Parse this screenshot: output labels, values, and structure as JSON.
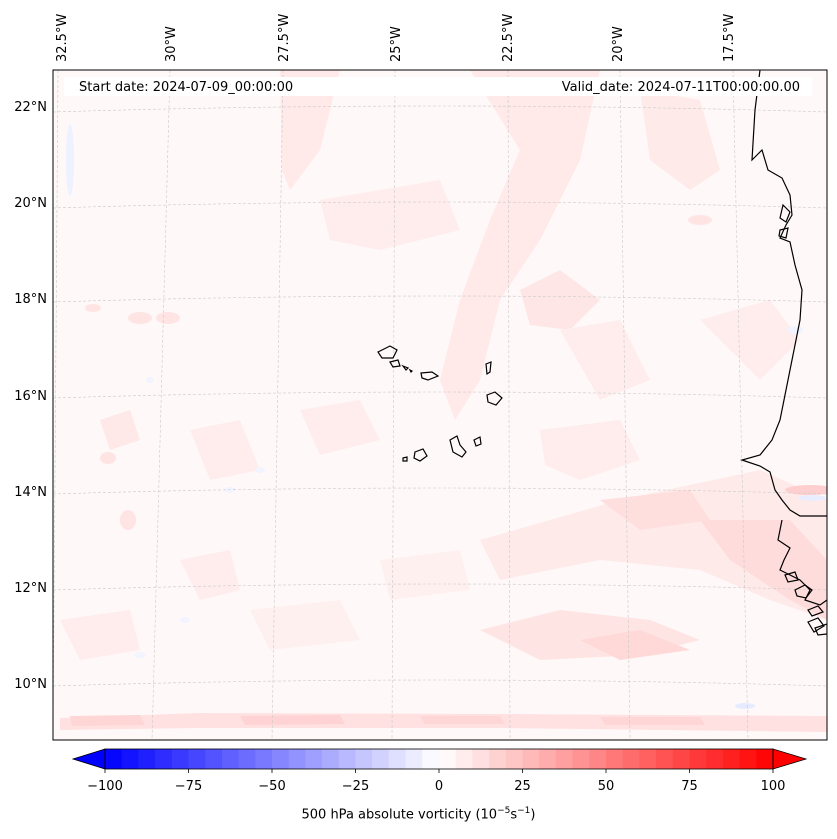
{
  "map": {
    "start_date_label": "Start date: 2024-07-09_00:00:00",
    "valid_date_label": "Valid_date: 2024-07-11T00:00:00.00",
    "lon_ticks": [
      "32.5°W",
      "30°W",
      "27.5°W",
      "25°W",
      "22.5°W",
      "20°W",
      "17.5°W"
    ],
    "lat_ticks": [
      "22°N",
      "20°N",
      "18°N",
      "16°N",
      "14°N",
      "12°N",
      "10°N"
    ]
  },
  "colorbar": {
    "tick_labels": [
      "−100",
      "−75",
      "−50",
      "−25",
      "0",
      "25",
      "50",
      "75",
      "100"
    ],
    "label_main": "500 hPa absolute vorticity (10",
    "label_sup1": "−5",
    "label_mid": "s",
    "label_sup2": "−1",
    "label_end": ")",
    "min_color": "#0000ff",
    "mid_color": "#ffffff",
    "max_color": "#ff0000"
  }
}
